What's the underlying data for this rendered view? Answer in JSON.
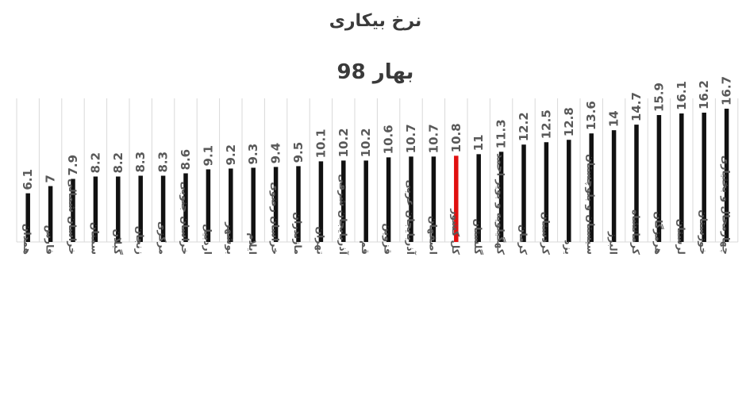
{
  "chart_data": {
    "type": "bar",
    "title": "نرخ بیکاری",
    "subtitle": "بهار 98",
    "categories": [
      "همدان",
      "فارس",
      "خراسان شمالی",
      "سمنان",
      "گیلان",
      "زنجان",
      "مرکزی",
      "خراسان جنوبی",
      "اردبیل",
      "بوشهر",
      "ایلام",
      "خراسان رضوی",
      "مازندران",
      "تهران",
      "آذربایجان شرقی",
      "قم",
      "قزوین",
      "آذربایجان غربی",
      "اصفهان",
      "کل کشور",
      "گلستان",
      "کهگیلویه و بویر احمد",
      "کرمان",
      "کردستان",
      "یزد",
      "سیستان و بلوچستان",
      "البرز",
      "کرمانشاه",
      "هرمزگان",
      "لرستان",
      "خوزستان",
      "چهارمحال و بختیاری"
    ],
    "values": [
      6.1,
      7,
      7.9,
      8.2,
      8.2,
      8.3,
      8.3,
      8.6,
      9.1,
      9.2,
      9.3,
      9.4,
      9.5,
      10.1,
      10.2,
      10.2,
      10.6,
      10.7,
      10.7,
      10.8,
      11,
      11.3,
      12.2,
      12.5,
      12.8,
      13.6,
      14,
      14.7,
      15.9,
      16.1,
      16.2,
      16.7
    ],
    "value_labels": [
      "6.1",
      "7",
      "7.9",
      "8.2",
      "8.2",
      "8.3",
      "8.3",
      "8.6",
      "9.1",
      "9.2",
      "9.3",
      "9.4",
      "9.5",
      "10.1",
      "10.2",
      "10.2",
      "10.6",
      "10.7",
      "10.7",
      "10.8",
      "11",
      "11.3",
      "12.2",
      "12.5",
      "12.8",
      "13.6",
      "14",
      "14.7",
      "15.9",
      "16.1",
      "16.2",
      "16.7"
    ],
    "highlight_category": "کل کشور",
    "ylim": [
      0,
      16.7
    ],
    "grid": "vertical",
    "legend": "none",
    "colors": {
      "bar": "#111111",
      "highlight": "#e01010",
      "grid": "#d9d9d9",
      "label": "#595959"
    }
  }
}
